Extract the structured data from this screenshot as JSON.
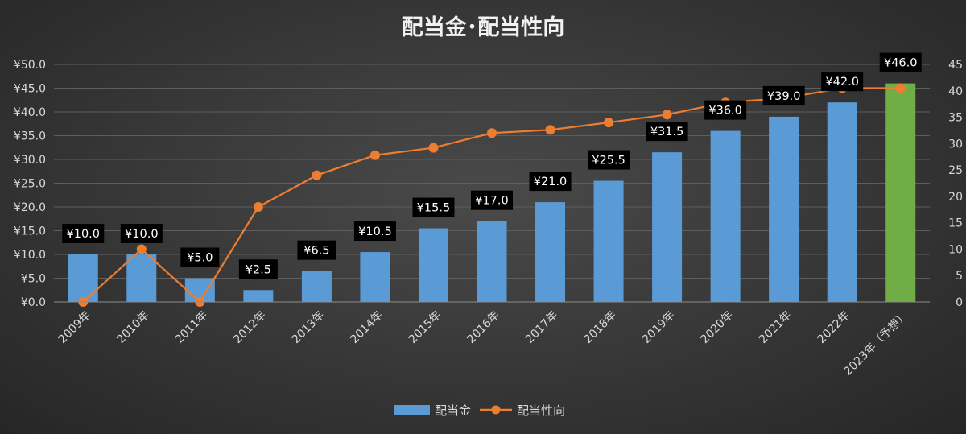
{
  "chart_data": {
    "type": "bar+line",
    "title": "配当金･配当性向",
    "categories": [
      "2009年",
      "2010年",
      "2011年",
      "2012年",
      "2013年",
      "2014年",
      "2015年",
      "2016年",
      "2017年",
      "2018年",
      "2019年",
      "2020年",
      "2021年",
      "2022年",
      "2023年（予想）"
    ],
    "series": [
      {
        "name": "配当金",
        "type": "bar",
        "axis": "left",
        "values": [
          10.0,
          10.0,
          5.0,
          2.5,
          6.5,
          10.5,
          15.5,
          17.0,
          21.0,
          25.5,
          31.5,
          36.0,
          39.0,
          42.0,
          46.0
        ],
        "data_labels": [
          "¥10.0",
          "¥10.0",
          "¥5.0",
          "¥2.5",
          "¥6.5",
          "¥10.5",
          "¥15.5",
          "¥17.0",
          "¥21.0",
          "¥25.5",
          "¥31.5",
          "¥36.0",
          "¥39.0",
          "¥42.0",
          "¥46.0"
        ],
        "color": "#5b9bd5",
        "highlight_color": "#70ad47",
        "highlight_index": 14
      },
      {
        "name": "配当性向",
        "type": "line",
        "axis": "right",
        "values": [
          0.0,
          10.0,
          0.0,
          18.0,
          24.0,
          27.8,
          29.2,
          32.0,
          32.6,
          34.0,
          35.5,
          37.8,
          38.6,
          40.5,
          40.5
        ],
        "color": "#ed7d31"
      }
    ],
    "y_left": {
      "min": 0,
      "max": 50,
      "step": 5,
      "tick_labels": [
        "¥0.0",
        "¥5.0",
        "¥10.0",
        "¥15.0",
        "¥20.0",
        "¥25.0",
        "¥30.0",
        "¥35.0",
        "¥40.0",
        "¥45.0",
        "¥50.0"
      ]
    },
    "y_right": {
      "min": 0,
      "max": 45,
      "step": 5,
      "tick_labels": [
        "0",
        "5",
        "10",
        "15",
        "20",
        "25",
        "30",
        "35",
        "40",
        "45"
      ]
    },
    "grid": true,
    "legend_position": "bottom"
  }
}
